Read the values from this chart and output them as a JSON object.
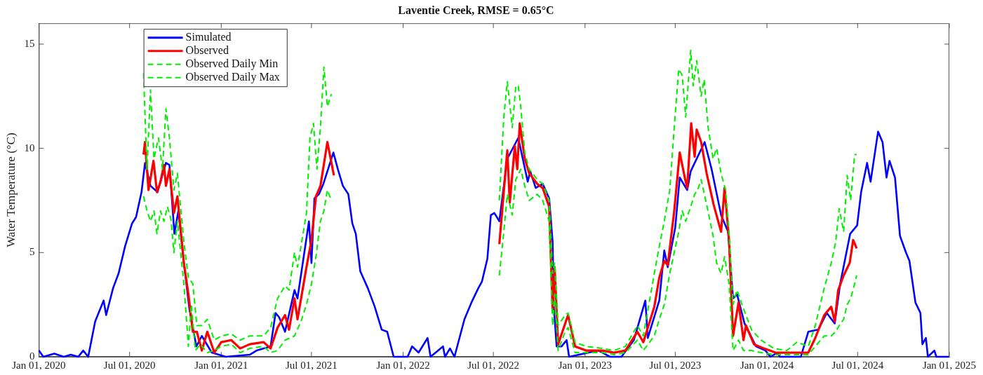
{
  "chart_data": {
    "type": "line",
    "title": "Laventie Creek, RMSE = 0.65°C",
    "ylabel": "Water Temperature (°C)",
    "legend": "top left",
    "xlim": [
      "2020-01-01",
      "2025-01-01"
    ],
    "ylim": [
      0,
      16
    ],
    "xticks": [
      {
        "value": "2020-01-01",
        "label": "Jan 01, 2020"
      },
      {
        "value": "2020-07-01",
        "label": "Jul 01, 2020"
      },
      {
        "value": "2021-01-01",
        "label": "Jan 01, 2021"
      },
      {
        "value": "2021-07-01",
        "label": "Jul 01, 2021"
      },
      {
        "value": "2022-01-01",
        "label": "Jan 01, 2022"
      },
      {
        "value": "2022-07-01",
        "label": "Jul 01, 2022"
      },
      {
        "value": "2023-01-01",
        "label": "Jan 01, 2023"
      },
      {
        "value": "2023-07-01",
        "label": "Jul 01, 2023"
      },
      {
        "value": "2024-01-01",
        "label": "Jan 01, 2024"
      },
      {
        "value": "2024-07-01",
        "label": "Jul 01, 2024"
      },
      {
        "value": "2025-01-01",
        "label": "Jan 01, 2025"
      }
    ],
    "yticks": [
      0,
      5,
      10,
      15
    ],
    "series": [
      {
        "name": "Simulated",
        "color": "#0000ff",
        "line_style": "solid",
        "x": [
          "2020-01-01",
          "2020-01-10",
          "2020-02-01",
          "2020-02-20",
          "2020-03-05",
          "2020-03-20",
          "2020-03-30",
          "2020-04-09",
          "2020-04-23",
          "2020-05-10",
          "2020-05-15",
          "2020-05-29",
          "2020-06-09",
          "2020-06-22",
          "2020-07-06",
          "2020-07-14",
          "2020-07-25",
          "2020-08-01",
          "2020-08-12",
          "2020-08-26",
          "2020-09-12",
          "2020-09-19",
          "2020-09-29",
          "2020-10-07",
          "2020-10-18",
          "2020-10-29",
          "2020-11-12",
          "2020-11-23",
          "2020-12-13",
          "2021-01-10",
          "2021-02-27",
          "2021-03-13",
          "2021-04-10",
          "2021-04-20",
          "2021-04-27",
          "2021-05-09",
          "2021-05-28",
          "2021-06-03",
          "2021-06-26",
          "2021-07-01",
          "2021-07-07",
          "2021-07-16",
          "2021-07-25",
          "2021-08-14",
          "2021-08-23",
          "2021-09-02",
          "2021-09-13",
          "2021-09-21",
          "2021-09-28",
          "2021-10-07",
          "2021-10-22",
          "2021-11-05",
          "2021-11-19",
          "2021-11-30",
          "2021-12-13",
          "2022-01-10",
          "2022-01-19",
          "2022-02-01",
          "2022-02-19",
          "2022-02-25",
          "2022-03-22",
          "2022-03-26",
          "2022-04-05",
          "2022-04-14",
          "2022-05-04",
          "2022-05-18",
          "2022-06-01",
          "2022-06-08",
          "2022-06-19",
          "2022-06-26",
          "2022-07-03",
          "2022-07-13",
          "2022-07-29",
          "2022-08-20",
          "2022-09-08",
          "2022-09-13",
          "2022-09-24",
          "2022-10-08",
          "2022-10-21",
          "2022-10-28",
          "2022-10-30",
          "2022-11-05",
          "2022-11-15",
          "2022-11-25",
          "2022-11-30",
          "2023-01-28",
          "2023-02-20",
          "2023-03-15",
          "2023-04-09",
          "2023-05-02",
          "2023-05-07",
          "2023-05-12",
          "2023-05-30",
          "2023-06-09",
          "2023-06-16",
          "2023-07-01",
          "2023-07-10",
          "2023-07-25",
          "2023-08-01",
          "2023-08-29",
          "2023-09-12",
          "2023-10-01",
          "2023-10-15",
          "2023-10-25",
          "2023-11-02",
          "2023-11-17",
          "2023-12-10",
          "2023-12-29",
          "2024-01-08",
          "2024-01-22",
          "2024-01-27",
          "2024-03-09",
          "2024-03-24",
          "2024-04-13",
          "2024-04-30",
          "2024-05-16",
          "2024-05-27",
          "2024-06-16",
          "2024-06-30",
          "2024-07-08",
          "2024-07-20",
          "2024-07-27",
          "2024-08-11",
          "2024-08-20",
          "2024-08-28",
          "2024-09-03",
          "2024-09-14",
          "2024-09-24",
          "2024-10-06",
          "2024-10-13",
          "2024-10-25",
          "2024-11-04",
          "2024-11-08",
          "2024-11-15",
          "2024-11-19",
          "2024-12-02",
          "2024-12-06",
          "2024-12-31"
        ],
        "values": [
          0.3,
          0,
          0.15,
          0,
          0.1,
          0,
          0.3,
          0,
          1.7,
          2.7,
          2.0,
          3.3,
          4.0,
          5.3,
          6.4,
          6.7,
          7.9,
          9.3,
          8.2,
          7.9,
          9.3,
          9.2,
          5.9,
          7.0,
          4.5,
          2.3,
          0.5,
          1.0,
          0.2,
          0,
          0.1,
          0.3,
          0.5,
          2.1,
          1.9,
          1.2,
          3.2,
          2.8,
          6.5,
          4.5,
          7.6,
          7.8,
          8.3,
          9.8,
          9.0,
          8.2,
          7.8,
          6.4,
          5.9,
          4.1,
          3.3,
          2.4,
          1.3,
          1.2,
          0,
          0,
          0.5,
          0.2,
          0.9,
          0,
          0.5,
          0,
          0.4,
          0,
          1.8,
          2.6,
          3.3,
          3.6,
          4.7,
          6.8,
          6.9,
          6.5,
          9.5,
          10.5,
          8.4,
          8.9,
          8.1,
          8.3,
          7.6,
          5.5,
          2.5,
          0.5,
          0.5,
          0.8,
          0,
          0.3,
          0,
          0,
          0.8,
          2.7,
          0.9,
          1.3,
          2.7,
          5.1,
          4.3,
          6.2,
          8.6,
          8.0,
          8.9,
          10.3,
          9.0,
          6.8,
          6.0,
          2.8,
          3.0,
          1.6,
          0.5,
          0.3,
          0,
          0.2,
          0,
          0,
          1.2,
          1.3,
          2.1,
          1.6,
          3.5,
          5.9,
          6.3,
          7.9,
          9.3,
          8.4,
          10.8,
          10.3,
          8.6,
          9.4,
          8.6,
          5.8,
          5.0,
          4.6,
          2.6,
          2.1,
          0.6,
          0.9,
          0,
          0.3,
          0,
          0
        ]
      },
      {
        "name": "Observed",
        "color": "#ff0000",
        "line_style": "solid",
        "x": [
          "2020-07-29",
          "2020-08-01",
          "2020-08-08",
          "2020-08-18",
          "2020-08-25",
          "2020-09-01",
          "2020-09-08",
          "2020-09-12",
          "2020-09-19",
          "2020-09-28",
          "2020-10-05",
          "2020-10-18",
          "2020-10-27",
          "2020-11-05",
          "2020-11-13",
          "2020-11-23",
          "2020-12-04",
          "2020-12-18",
          "2021-01-01",
          "2021-01-21",
          "2021-02-08",
          "2021-02-27",
          "2021-03-27",
          "2021-04-10",
          "2021-04-24",
          "2021-05-09",
          "2021-05-17",
          "2021-05-28",
          "2021-06-03",
          "2021-06-21",
          "2021-07-01",
          "2021-07-10",
          "2021-07-19",
          "2021-08-02",
          "2021-08-15",
          "2022-01-01",
          "2022-07-13",
          "2022-07-29",
          "2022-08-03",
          "2022-08-13",
          "2022-08-18",
          "2022-08-23",
          "2022-09-02",
          "2022-09-11",
          "2022-09-27",
          "2022-10-08",
          "2022-10-21",
          "2022-10-28",
          "2022-11-01",
          "2022-11-08",
          "2022-11-25",
          "2022-11-28",
          "2022-12-12",
          "2023-01-03",
          "2023-02-05",
          "2023-02-28",
          "2023-03-23",
          "2023-04-16",
          "2023-04-28",
          "2023-05-20",
          "2023-05-30",
          "2023-06-09",
          "2023-06-16",
          "2023-06-29",
          "2023-07-10",
          "2023-07-21",
          "2023-07-25",
          "2023-08-02",
          "2023-08-09",
          "2023-08-13",
          "2023-08-22",
          "2023-09-02",
          "2023-09-16",
          "2023-10-01",
          "2023-10-08",
          "2023-10-17",
          "2023-10-25",
          "2023-11-05",
          "2023-11-15",
          "2023-11-20",
          "2023-12-06",
          "2023-12-26",
          "2024-01-18",
          "2024-02-26",
          "2024-03-24",
          "2024-04-07",
          "2024-04-25",
          "2024-05-09",
          "2024-05-16",
          "2024-05-23",
          "2024-06-03",
          "2024-06-15",
          "2024-06-22",
          "2024-06-29"
        ],
        "values": [
          9.7,
          10.3,
          8.0,
          9.4,
          7.9,
          8.4,
          9.2,
          8.2,
          9.0,
          6.9,
          7.7,
          4.5,
          3.0,
          1.2,
          1.2,
          0.3,
          1.2,
          0.2,
          0.7,
          0.8,
          0.4,
          0.6,
          0.7,
          0.4,
          1.4,
          2.0,
          1.3,
          2.8,
          1.8,
          4.3,
          5.6,
          7.7,
          8.2,
          10.3,
          8.7,
          null,
          5.4,
          9.9,
          7.4,
          10.1,
          9.0,
          11.2,
          9.5,
          8.8,
          8.3,
          8.1,
          7.2,
          2.2,
          4.3,
          0.6,
          1.8,
          2.0,
          0.5,
          0.3,
          0.3,
          0.2,
          0.3,
          1.2,
          0.7,
          2.4,
          3.8,
          4.6,
          4.4,
          7.0,
          9.8,
          8.5,
          8.1,
          11.2,
          9.6,
          10.9,
          10.3,
          8.8,
          7.3,
          6.0,
          8.1,
          5.6,
          1.0,
          2.6,
          0.8,
          1.5,
          0.6,
          0.4,
          0.2,
          0.2,
          0.2,
          0.9,
          2.0,
          2.4,
          1.7,
          3.2,
          3.9,
          4.5,
          5.6,
          5.2
        ]
      },
      {
        "name": "Observed Daily Min",
        "color": "#00ee00",
        "line_style": "dashed",
        "x": [
          "2020-07-29",
          "2020-08-05",
          "2020-08-12",
          "2020-08-19",
          "2020-08-25",
          "2020-09-01",
          "2020-09-08",
          "2020-09-15",
          "2020-09-22",
          "2020-09-28",
          "2020-10-05",
          "2020-10-18",
          "2020-10-27",
          "2020-11-02",
          "2020-11-10",
          "2020-11-20",
          "2020-12-04",
          "2020-12-18",
          "2021-01-01",
          "2021-01-21",
          "2021-02-08",
          "2021-02-27",
          "2021-03-27",
          "2021-04-10",
          "2021-04-24",
          "2021-05-09",
          "2021-05-28",
          "2021-06-10",
          "2021-06-21",
          "2021-07-01",
          "2021-07-10",
          "2021-07-19",
          "2021-07-26",
          "2021-08-02",
          "2021-08-10",
          "2022-01-01",
          "2022-07-13",
          "2022-07-22",
          "2022-07-29",
          "2022-08-08",
          "2022-08-15",
          "2022-08-25",
          "2022-09-02",
          "2022-09-11",
          "2022-09-27",
          "2022-10-08",
          "2022-10-21",
          "2022-10-28",
          "2022-11-01",
          "2022-11-08",
          "2022-11-22",
          "2022-11-28",
          "2022-12-12",
          "2023-01-03",
          "2023-02-05",
          "2023-02-28",
          "2023-03-23",
          "2023-04-16",
          "2023-04-28",
          "2023-05-20",
          "2023-05-30",
          "2023-06-09",
          "2023-06-20",
          "2023-06-29",
          "2023-07-08",
          "2023-07-15",
          "2023-07-22",
          "2023-08-01",
          "2023-08-09",
          "2023-08-15",
          "2023-08-22",
          "2023-09-02",
          "2023-09-15",
          "2023-09-22",
          "2023-10-01",
          "2023-10-08",
          "2023-10-17",
          "2023-10-25",
          "2023-11-05",
          "2023-11-15",
          "2023-12-01",
          "2023-12-20",
          "2024-01-15",
          "2024-02-10",
          "2024-03-01",
          "2024-03-24",
          "2024-04-07",
          "2024-04-25",
          "2024-05-09",
          "2024-05-18",
          "2024-05-25",
          "2024-06-03",
          "2024-06-10",
          "2024-06-17",
          "2024-06-25",
          "2024-06-29"
        ],
        "values": [
          7.7,
          7.0,
          6.5,
          7.0,
          5.9,
          7.0,
          6.5,
          7.2,
          6.6,
          5.0,
          6.5,
          3.5,
          0.5,
          2.5,
          0.3,
          0.6,
          0.2,
          0.3,
          0.5,
          0.6,
          0.2,
          0.4,
          0.5,
          0.2,
          0.3,
          0.8,
          1.0,
          1.7,
          2.5,
          3.5,
          4.8,
          6.5,
          7.0,
          8.0,
          7.5,
          null,
          3.9,
          6.0,
          7.8,
          6.8,
          8.5,
          9.0,
          8.2,
          7.5,
          7.8,
          7.5,
          6.5,
          1.5,
          3.0,
          0.3,
          1.2,
          1.4,
          0.2,
          0.2,
          0.2,
          0.1,
          0.2,
          0.8,
          0.3,
          1.0,
          1.8,
          2.5,
          4.0,
          5.0,
          6.0,
          7.0,
          6.5,
          7.2,
          7.8,
          8.0,
          8.5,
          7.3,
          5.8,
          4.5,
          4.0,
          4.8,
          3.5,
          0.3,
          0.8,
          0.3,
          0.3,
          0.2,
          0.1,
          0.1,
          0.1,
          0.1,
          0.5,
          1.0,
          1.0,
          1.2,
          1.5,
          1.8,
          2.5,
          2.8,
          3.5,
          3.9
        ]
      },
      {
        "name": "Observed Daily Max",
        "color": "#00ee00",
        "line_style": "dashed",
        "x": [
          "2020-07-29",
          "2020-08-05",
          "2020-08-12",
          "2020-08-19",
          "2020-08-28",
          "2020-09-05",
          "2020-09-12",
          "2020-09-19",
          "2020-09-28",
          "2020-10-05",
          "2020-10-18",
          "2020-10-27",
          "2020-11-05",
          "2020-11-13",
          "2020-11-23",
          "2020-12-04",
          "2020-12-18",
          "2021-01-01",
          "2021-01-21",
          "2021-02-08",
          "2021-02-27",
          "2021-03-27",
          "2021-04-10",
          "2021-04-24",
          "2021-05-09",
          "2021-05-17",
          "2021-05-28",
          "2021-06-03",
          "2021-06-21",
          "2021-06-28",
          "2021-07-05",
          "2021-07-12",
          "2021-07-19",
          "2021-07-26",
          "2021-08-02",
          "2021-08-10",
          "2022-01-01",
          "2022-07-13",
          "2022-07-22",
          "2022-07-29",
          "2022-08-08",
          "2022-08-15",
          "2022-08-20",
          "2022-08-25",
          "2022-09-02",
          "2022-09-11",
          "2022-09-27",
          "2022-10-08",
          "2022-10-21",
          "2022-10-28",
          "2022-11-01",
          "2022-11-08",
          "2022-11-22",
          "2022-11-28",
          "2022-12-12",
          "2023-01-03",
          "2023-02-05",
          "2023-02-28",
          "2023-03-23",
          "2023-04-16",
          "2023-04-28",
          "2023-05-20",
          "2023-05-30",
          "2023-06-09",
          "2023-06-20",
          "2023-06-29",
          "2023-07-08",
          "2023-07-15",
          "2023-07-22",
          "2023-08-01",
          "2023-08-06",
          "2023-08-13",
          "2023-08-22",
          "2023-08-28",
          "2023-09-05",
          "2023-09-15",
          "2023-09-22",
          "2023-10-01",
          "2023-10-10",
          "2023-10-17",
          "2023-10-25",
          "2023-11-02",
          "2023-11-15",
          "2023-12-01",
          "2023-12-20",
          "2024-01-15",
          "2024-02-10",
          "2024-03-01",
          "2024-03-24",
          "2024-04-07",
          "2024-04-25",
          "2024-05-09",
          "2024-05-18",
          "2024-05-25",
          "2024-06-03",
          "2024-06-10",
          "2024-06-17",
          "2024-06-25",
          "2024-06-29"
        ],
        "values": [
          13.6,
          9.0,
          12.8,
          9.5,
          10.5,
          9.0,
          11.9,
          10.5,
          8.0,
          8.8,
          5.5,
          3.8,
          3.5,
          1.5,
          1.5,
          1.8,
          0.8,
          1.0,
          1.1,
          0.8,
          1.0,
          1.0,
          1.4,
          2.8,
          3.4,
          3.2,
          5.0,
          4.3,
          6.9,
          10.5,
          11.2,
          9.0,
          11.0,
          13.9,
          12.0,
          12.6,
          null,
          7.5,
          11.5,
          13.2,
          11.0,
          13.0,
          13.0,
          12.0,
          9.8,
          9.0,
          8.5,
          8.3,
          7.5,
          4.0,
          4.5,
          1.5,
          2.0,
          2.1,
          0.7,
          0.5,
          0.4,
          0.3,
          0.5,
          1.5,
          1.0,
          4.0,
          5.3,
          6.5,
          8.0,
          11.0,
          13.8,
          13.5,
          11.5,
          14.7,
          13.0,
          14.2,
          12.5,
          13.3,
          11.0,
          9.5,
          10.0,
          8.8,
          8.0,
          6.0,
          2.5,
          3.2,
          2.3,
          1.3,
          0.8,
          0.4,
          0.3,
          0.7,
          0.5,
          1.5,
          3.3,
          4.5,
          5.5,
          7.1,
          6.0,
          8.7,
          7.5,
          9.7,
          9.7
        ]
      }
    ]
  }
}
